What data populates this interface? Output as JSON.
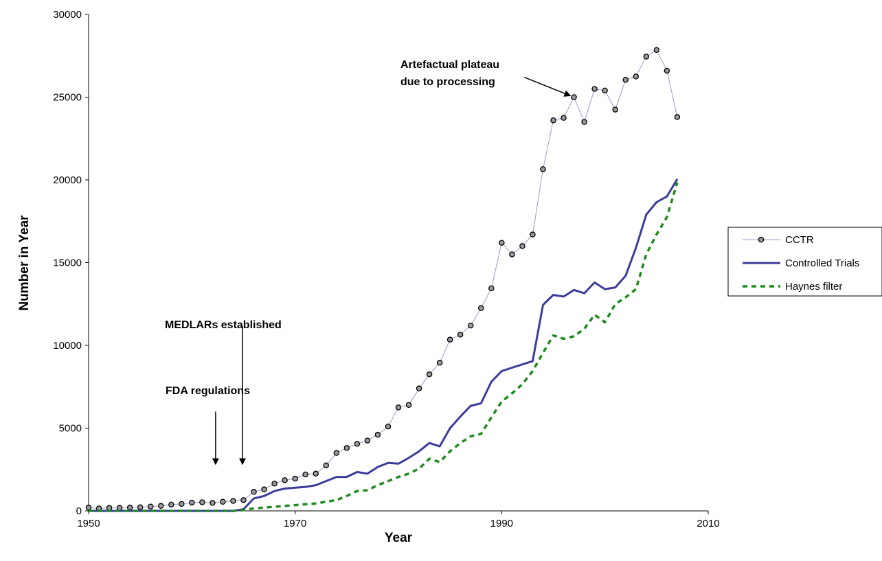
{
  "chart_data": {
    "type": "line",
    "xlabel": "Year",
    "ylabel": "Number in Year",
    "xlim": [
      1950,
      2010
    ],
    "ylim": [
      0,
      30000
    ],
    "x_ticks": [
      "1950",
      "1970",
      "1990",
      "2010"
    ],
    "y_ticks": [
      "0",
      "5000",
      "10000",
      "15000",
      "20000",
      "25000",
      "30000"
    ],
    "grid": false,
    "legend_position": "right",
    "series": [
      {
        "name": "CCTR",
        "color": "#9a9ad0",
        "marker": "circle",
        "points": [
          [
            1950,
            200
          ],
          [
            1951,
            150
          ],
          [
            1952,
            180
          ],
          [
            1953,
            180
          ],
          [
            1954,
            200
          ],
          [
            1955,
            220
          ],
          [
            1956,
            260
          ],
          [
            1957,
            300
          ],
          [
            1958,
            380
          ],
          [
            1959,
            420
          ],
          [
            1960,
            500
          ],
          [
            1961,
            520
          ],
          [
            1962,
            480
          ],
          [
            1963,
            550
          ],
          [
            1964,
            600
          ],
          [
            1965,
            650
          ],
          [
            1966,
            1150
          ],
          [
            1967,
            1300
          ],
          [
            1968,
            1650
          ],
          [
            1969,
            1850
          ],
          [
            1970,
            1950
          ],
          [
            1971,
            2200
          ],
          [
            1972,
            2250
          ],
          [
            1973,
            2750
          ],
          [
            1974,
            3500
          ],
          [
            1975,
            3800
          ],
          [
            1976,
            4050
          ],
          [
            1977,
            4250
          ],
          [
            1978,
            4600
          ],
          [
            1979,
            5100
          ],
          [
            1980,
            6250
          ],
          [
            1981,
            6400
          ],
          [
            1982,
            7400
          ],
          [
            1983,
            8250
          ],
          [
            1984,
            8950
          ],
          [
            1985,
            10350
          ],
          [
            1986,
            10650
          ],
          [
            1987,
            11200
          ],
          [
            1988,
            12250
          ],
          [
            1989,
            13450
          ],
          [
            1990,
            16200
          ],
          [
            1991,
            15500
          ],
          [
            1992,
            16000
          ],
          [
            1993,
            16700
          ],
          [
            1994,
            20650
          ],
          [
            1995,
            23600
          ],
          [
            1996,
            23750
          ],
          [
            1997,
            25000
          ],
          [
            1998,
            23500
          ],
          [
            1999,
            25500
          ],
          [
            2000,
            25400
          ],
          [
            2001,
            24250
          ],
          [
            2002,
            26050
          ],
          [
            2003,
            26250
          ],
          [
            2004,
            27450
          ],
          [
            2005,
            27850
          ],
          [
            2006,
            26600
          ],
          [
            2007,
            23800
          ]
        ]
      },
      {
        "name": "Controlled Trials",
        "color": "#3b3b9c",
        "marker": "none",
        "points": [
          [
            1950,
            0
          ],
          [
            1955,
            0
          ],
          [
            1960,
            0
          ],
          [
            1964,
            0
          ],
          [
            1965,
            100
          ],
          [
            1966,
            750
          ],
          [
            1967,
            900
          ],
          [
            1968,
            1200
          ],
          [
            1969,
            1350
          ],
          [
            1970,
            1400
          ],
          [
            1971,
            1450
          ],
          [
            1972,
            1550
          ],
          [
            1973,
            1800
          ],
          [
            1974,
            2050
          ],
          [
            1975,
            2050
          ],
          [
            1976,
            2350
          ],
          [
            1977,
            2250
          ],
          [
            1978,
            2650
          ],
          [
            1979,
            2900
          ],
          [
            1980,
            2850
          ],
          [
            1981,
            3200
          ],
          [
            1982,
            3600
          ],
          [
            1983,
            4100
          ],
          [
            1984,
            3900
          ],
          [
            1985,
            5000
          ],
          [
            1986,
            5700
          ],
          [
            1987,
            6350
          ],
          [
            1988,
            6500
          ],
          [
            1989,
            7800
          ],
          [
            1990,
            8450
          ],
          [
            1991,
            8650
          ],
          [
            1992,
            8850
          ],
          [
            1993,
            9050
          ],
          [
            1994,
            12450
          ],
          [
            1995,
            13050
          ],
          [
            1996,
            12950
          ],
          [
            1997,
            13350
          ],
          [
            1998,
            13150
          ],
          [
            1999,
            13800
          ],
          [
            2000,
            13400
          ],
          [
            2001,
            13500
          ],
          [
            2002,
            14200
          ],
          [
            2003,
            15900
          ],
          [
            2004,
            17900
          ],
          [
            2005,
            18650
          ],
          [
            2006,
            19000
          ],
          [
            2007,
            20050
          ]
        ]
      },
      {
        "name": "Haynes filter",
        "color": "#1e8a1e",
        "marker": "none",
        "points": [
          [
            1950,
            0
          ],
          [
            1955,
            0
          ],
          [
            1960,
            0
          ],
          [
            1964,
            0
          ],
          [
            1965,
            50
          ],
          [
            1966,
            150
          ],
          [
            1967,
            200
          ],
          [
            1968,
            250
          ],
          [
            1969,
            300
          ],
          [
            1970,
            350
          ],
          [
            1971,
            400
          ],
          [
            1972,
            450
          ],
          [
            1973,
            550
          ],
          [
            1974,
            650
          ],
          [
            1975,
            900
          ],
          [
            1976,
            1200
          ],
          [
            1977,
            1250
          ],
          [
            1978,
            1550
          ],
          [
            1979,
            1800
          ],
          [
            1980,
            2050
          ],
          [
            1981,
            2250
          ],
          [
            1982,
            2550
          ],
          [
            1983,
            3150
          ],
          [
            1984,
            2950
          ],
          [
            1985,
            3600
          ],
          [
            1986,
            4100
          ],
          [
            1987,
            4500
          ],
          [
            1988,
            4650
          ],
          [
            1989,
            5650
          ],
          [
            1990,
            6600
          ],
          [
            1991,
            7100
          ],
          [
            1992,
            7650
          ],
          [
            1993,
            8450
          ],
          [
            1994,
            9550
          ],
          [
            1995,
            10600
          ],
          [
            1996,
            10400
          ],
          [
            1997,
            10550
          ],
          [
            1998,
            11000
          ],
          [
            1999,
            11850
          ],
          [
            2000,
            11400
          ],
          [
            2001,
            12500
          ],
          [
            2002,
            12900
          ],
          [
            2003,
            13400
          ],
          [
            2004,
            15500
          ],
          [
            2005,
            16700
          ],
          [
            2006,
            17750
          ],
          [
            2007,
            19850
          ]
        ]
      }
    ],
    "annotations": [
      {
        "id": "artefact",
        "lines": [
          "Artefactual plateau",
          "due to processing"
        ],
        "arrow_from": [
          1992.2,
          26200
        ],
        "arrow_to": [
          1996.6,
          25100
        ]
      },
      {
        "id": "medlars",
        "lines": [
          "MEDLARs established"
        ],
        "arrow_from": [
          1964.9,
          11150
        ],
        "arrow_to": [
          1964.9,
          2850
        ]
      },
      {
        "id": "fda",
        "lines": [
          "FDA regulations"
        ],
        "arrow_from": [
          1962.3,
          6000
        ],
        "arrow_to": [
          1962.3,
          2850
        ]
      }
    ]
  }
}
